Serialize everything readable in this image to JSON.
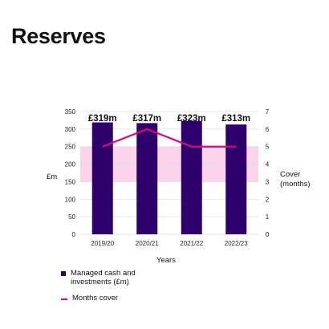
{
  "title": "Reserves",
  "colors": {
    "bar": "#2e006c",
    "line": "#e6007e",
    "band": "#fbd3ea",
    "grid": "#dddddd"
  },
  "chart_data": {
    "type": "bar",
    "title": "Reserves",
    "categories": [
      "2019/20",
      "2020/21",
      "2021/22",
      "2022/23"
    ],
    "xlabel": "Years",
    "ylabel": "£m",
    "y2label": [
      "Cover",
      "(months)"
    ],
    "ylim": [
      0,
      350
    ],
    "yticks": [
      0,
      50,
      100,
      150,
      200,
      250,
      300,
      350
    ],
    "y2lim": [
      0,
      7
    ],
    "y2ticks": [
      0,
      1,
      2,
      3,
      4,
      5,
      6,
      7
    ],
    "highlight_y2_ticks": [
      3,
      4,
      5
    ],
    "target_band_y2": [
      3,
      5
    ],
    "grid": true,
    "legend_position": "bottom-left",
    "series": [
      {
        "name": "Managed cash and investments (£m)",
        "type": "bar",
        "axis": "left",
        "values": [
          319,
          317,
          323,
          313
        ],
        "labels": [
          "£319m",
          "£317m",
          "£323m",
          "£313m"
        ]
      },
      {
        "name": "Months cover",
        "type": "line",
        "axis": "right",
        "values": [
          5,
          6,
          5,
          5
        ]
      }
    ]
  },
  "legend": {
    "items": [
      {
        "label": "Managed cash and investments (£m)"
      },
      {
        "label": "Months cover"
      }
    ]
  }
}
